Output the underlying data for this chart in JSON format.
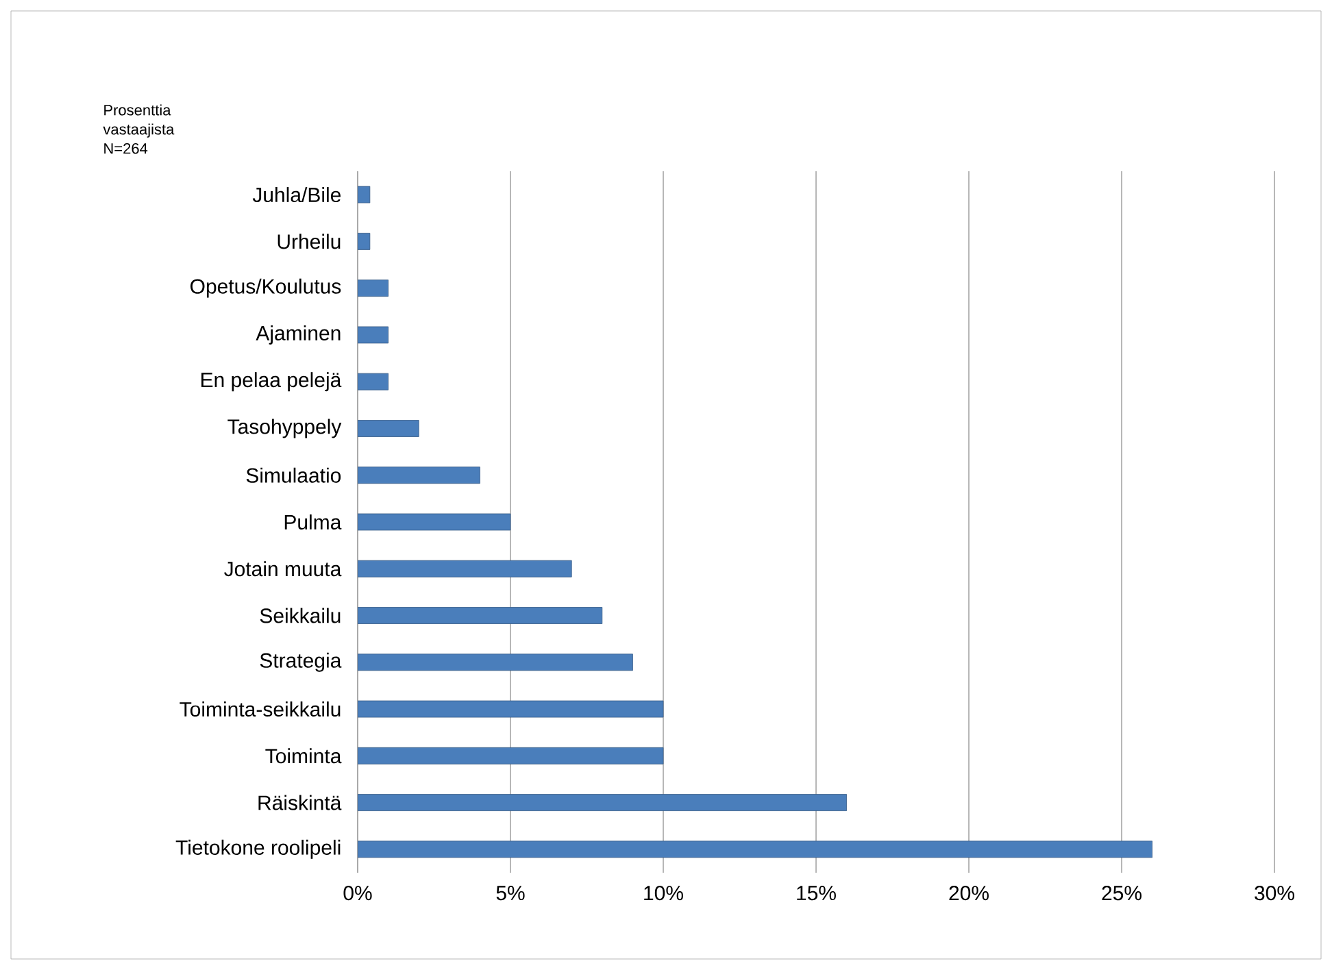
{
  "chart_data": {
    "type": "bar",
    "orientation": "horizontal",
    "title": "Prosenttia vastaajista N=264",
    "categories": [
      "Juhla/Bile",
      "Urheilu",
      "Opetus/Koulutus",
      "Ajaminen",
      "En pelaa pelejä",
      "Tasohyppely",
      "Simulaatio",
      "Pulma",
      "Jotain muuta",
      "Seikkailu",
      "Strategia",
      "Toiminta-seikkailu",
      "Toiminta",
      "Räiskintä",
      "Tietokone roolipeli"
    ],
    "values": [
      0.4,
      0.4,
      1,
      1,
      1,
      2,
      4,
      5,
      7,
      8,
      9,
      10,
      10,
      16,
      26
    ],
    "color": "#4a7ebb",
    "xlim": [
      0,
      30
    ],
    "xticks": [
      {
        "value": 0,
        "label": "0%"
      },
      {
        "value": 5,
        "label": "5%"
      },
      {
        "value": 10,
        "label": "10%"
      },
      {
        "value": 15,
        "label": "15%"
      },
      {
        "value": 20,
        "label": "20%"
      },
      {
        "value": 25,
        "label": "25%"
      },
      {
        "value": 30,
        "label": "30%"
      }
    ],
    "grid": "x"
  }
}
